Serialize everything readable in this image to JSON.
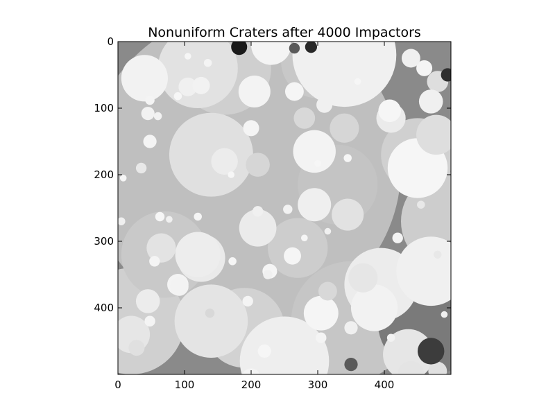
{
  "chart_data": {
    "type": "heatmap",
    "title": "Nonuniform Craters after 4000 Impactors",
    "xlabel": "",
    "ylabel": "",
    "xlim": [
      0,
      500
    ],
    "ylim": [
      500,
      0
    ],
    "x_ticks": [
      0,
      100,
      200,
      300,
      400
    ],
    "y_ticks": [
      0,
      100,
      200,
      300,
      400
    ],
    "x_tick_labels": [
      "0",
      "100",
      "200",
      "300",
      "400"
    ],
    "y_tick_labels": [
      "0",
      "100",
      "200",
      "300",
      "400"
    ],
    "colormap": "gray",
    "background_shade": "#8a8a8a",
    "frame_color": "#000000",
    "craters": [
      {
        "x": 190,
        "y": 190,
        "r": 235,
        "shade": "#bfbfbf"
      },
      {
        "x": 350,
        "y": 420,
        "r": 90,
        "shade": "#c6c6c6"
      },
      {
        "x": 330,
        "y": 215,
        "r": 60,
        "shade": "#c4c4c4"
      },
      {
        "x": 500,
        "y": 270,
        "r": 75,
        "shade": "#cdcdcd"
      },
      {
        "x": 450,
        "y": 170,
        "r": 55,
        "shade": "#d0d0d0"
      },
      {
        "x": 20,
        "y": 420,
        "r": 80,
        "shade": "#d0d0d0"
      },
      {
        "x": 190,
        "y": 430,
        "r": 60,
        "shade": "#d2d2d2"
      },
      {
        "x": 300,
        "y": 30,
        "r": 55,
        "shade": "#c8c8c8"
      },
      {
        "x": 160,
        "y": 40,
        "r": 70,
        "shade": "#cfcfcf"
      },
      {
        "x": 70,
        "y": 320,
        "r": 65,
        "shade": "#c9c9c9"
      },
      {
        "x": 470,
        "y": 420,
        "r": 80,
        "shade": "#7a7a7a"
      },
      {
        "x": 270,
        "y": 310,
        "r": 45,
        "shade": "#cdcdcd"
      },
      {
        "x": 120,
        "y": 40,
        "r": 60,
        "shade": "#e2e2e2"
      },
      {
        "x": 140,
        "y": 170,
        "r": 63,
        "shade": "#e0e0e0"
      },
      {
        "x": 40,
        "y": 55,
        "r": 35,
        "shade": "#f2f2f2"
      },
      {
        "x": 340,
        "y": 20,
        "r": 78,
        "shade": "#f0f0f0"
      },
      {
        "x": 230,
        "y": 5,
        "r": 30,
        "shade": "#f4f4f4"
      },
      {
        "x": 450,
        "y": 190,
        "r": 45,
        "shade": "#f6f6f6"
      },
      {
        "x": 395,
        "y": 365,
        "r": 55,
        "shade": "#ececec"
      },
      {
        "x": 385,
        "y": 400,
        "r": 35,
        "shade": "#f2f2f2"
      },
      {
        "x": 470,
        "y": 345,
        "r": 52,
        "shade": "#f0f0f0"
      },
      {
        "x": 140,
        "y": 420,
        "r": 55,
        "shade": "#e4e4e4"
      },
      {
        "x": 250,
        "y": 480,
        "r": 67,
        "shade": "#eeeeee"
      },
      {
        "x": 125,
        "y": 325,
        "r": 36,
        "shade": "#eaeaea"
      },
      {
        "x": 210,
        "y": 280,
        "r": 28,
        "shade": "#ebebeb"
      },
      {
        "x": 295,
        "y": 245,
        "r": 25,
        "shade": "#efefef"
      },
      {
        "x": 295,
        "y": 165,
        "r": 32,
        "shade": "#f3f3f3"
      },
      {
        "x": 20,
        "y": 440,
        "r": 28,
        "shade": "#e6e6e6"
      },
      {
        "x": 305,
        "y": 408,
        "r": 26,
        "shade": "#f5f5f5"
      },
      {
        "x": 436,
        "y": 470,
        "r": 38,
        "shade": "#e6e6e6"
      },
      {
        "x": 205,
        "y": 75,
        "r": 24,
        "shade": "#f3f3f3"
      },
      {
        "x": 410,
        "y": 115,
        "r": 22,
        "shade": "#ebebeb"
      },
      {
        "x": 478,
        "y": 140,
        "r": 30,
        "shade": "#dedede"
      },
      {
        "x": 345,
        "y": 260,
        "r": 24,
        "shade": "#e2e2e2"
      },
      {
        "x": 65,
        "y": 310,
        "r": 22,
        "shade": "#e3e3e3"
      },
      {
        "x": 90,
        "y": 365,
        "r": 16,
        "shade": "#f4f4f4"
      },
      {
        "x": 45,
        "y": 390,
        "r": 18,
        "shade": "#ececec"
      },
      {
        "x": 315,
        "y": 375,
        "r": 14,
        "shade": "#d8d8d8"
      },
      {
        "x": 340,
        "y": 130,
        "r": 22,
        "shade": "#d6d6d6"
      },
      {
        "x": 280,
        "y": 115,
        "r": 16,
        "shade": "#d8d8d8"
      },
      {
        "x": 265,
        "y": 75,
        "r": 14,
        "shade": "#f5f5f5"
      },
      {
        "x": 210,
        "y": 185,
        "r": 18,
        "shade": "#d6d6d6"
      },
      {
        "x": 160,
        "y": 180,
        "r": 20,
        "shade": "#ececec"
      },
      {
        "x": 200,
        "y": 130,
        "r": 12,
        "shade": "#f4f4f4"
      },
      {
        "x": 105,
        "y": 68,
        "r": 14,
        "shade": "#f0f0f0"
      },
      {
        "x": 125,
        "y": 66,
        "r": 13,
        "shade": "#f2f2f2"
      },
      {
        "x": 228,
        "y": 345,
        "r": 11,
        "shade": "#f5f5f5"
      },
      {
        "x": 262,
        "y": 322,
        "r": 13,
        "shade": "#f5f5f5"
      },
      {
        "x": 310,
        "y": 95,
        "r": 12,
        "shade": "#f0f0f0"
      },
      {
        "x": 408,
        "y": 104,
        "r": 17,
        "shade": "#f6f6f6"
      },
      {
        "x": 480,
        "y": 60,
        "r": 16,
        "shade": "#dedede"
      },
      {
        "x": 470,
        "y": 90,
        "r": 18,
        "shade": "#f0f0f0"
      },
      {
        "x": 460,
        "y": 40,
        "r": 12,
        "shade": "#f4f4f4"
      },
      {
        "x": 440,
        "y": 25,
        "r": 14,
        "shade": "#f0f0f0"
      },
      {
        "x": 480,
        "y": 495,
        "r": 14,
        "shade": "#e0e0e0"
      },
      {
        "x": 440,
        "y": 500,
        "r": 20,
        "shade": "#e4e4e4"
      },
      {
        "x": 120,
        "y": 320,
        "r": 34,
        "shade": "#ededed"
      },
      {
        "x": 368,
        "y": 355,
        "r": 22,
        "shade": "#e6e6e6"
      },
      {
        "x": 92,
        "y": 368,
        "r": 14,
        "shade": "#f3f3f3"
      },
      {
        "x": 28,
        "y": 460,
        "r": 12,
        "shade": "#e0e0e0"
      },
      {
        "x": 200,
        "y": 505,
        "r": 14,
        "shade": "#f4f4f4"
      },
      {
        "x": 350,
        "y": 430,
        "r": 10,
        "shade": "#f0f0f0"
      },
      {
        "x": 530,
        "y": 230,
        "r": 20,
        "shade": "#e0e0e0"
      },
      {
        "x": 305,
        "y": 445,
        "r": 8,
        "shade": "#f4f4f4"
      },
      {
        "x": 48,
        "y": 150,
        "r": 10,
        "shade": "#f4f4f4"
      },
      {
        "x": 35,
        "y": 190,
        "r": 8,
        "shade": "#e8e8e8"
      },
      {
        "x": 8,
        "y": 205,
        "r": 5,
        "shade": "#f6f6f6"
      },
      {
        "x": 5,
        "y": 270,
        "r": 6,
        "shade": "#f0f0f0"
      },
      {
        "x": 45,
        "y": 108,
        "r": 10,
        "shade": "#f2f2f2"
      },
      {
        "x": 60,
        "y": 112,
        "r": 6,
        "shade": "#f2f2f2"
      },
      {
        "x": 48,
        "y": 88,
        "r": 7,
        "shade": "#f4f4f4"
      },
      {
        "x": 90,
        "y": 82,
        "r": 6,
        "shade": "#f6f6f6"
      },
      {
        "x": 135,
        "y": 32,
        "r": 6,
        "shade": "#f4f4f4"
      },
      {
        "x": 105,
        "y": 22,
        "r": 5,
        "shade": "#f6f6f6"
      },
      {
        "x": 138,
        "y": 408,
        "r": 7,
        "shade": "#d8d8d8"
      },
      {
        "x": 48,
        "y": 420,
        "r": 8,
        "shade": "#f4f4f4"
      },
      {
        "x": 63,
        "y": 263,
        "r": 7,
        "shade": "#f6f6f6"
      },
      {
        "x": 77,
        "y": 267,
        "r": 5,
        "shade": "#f0f0f0"
      },
      {
        "x": 55,
        "y": 330,
        "r": 8,
        "shade": "#f4f4f4"
      },
      {
        "x": 120,
        "y": 263,
        "r": 6,
        "shade": "#f5f5f5"
      },
      {
        "x": 170,
        "y": 200,
        "r": 5,
        "shade": "#f6f6f6"
      },
      {
        "x": 210,
        "y": 255,
        "r": 8,
        "shade": "#f0f0f0"
      },
      {
        "x": 255,
        "y": 252,
        "r": 7,
        "shade": "#f2f2f2"
      },
      {
        "x": 315,
        "y": 285,
        "r": 5,
        "shade": "#f0f0f0"
      },
      {
        "x": 345,
        "y": 175,
        "r": 6,
        "shade": "#f6f6f6"
      },
      {
        "x": 300,
        "y": 183,
        "r": 5,
        "shade": "#f6f6f6"
      },
      {
        "x": 360,
        "y": 60,
        "r": 5,
        "shade": "#f6f6f6"
      },
      {
        "x": 410,
        "y": 445,
        "r": 6,
        "shade": "#f2f2f2"
      },
      {
        "x": 455,
        "y": 245,
        "r": 6,
        "shade": "#e8e8e8"
      },
      {
        "x": 420,
        "y": 295,
        "r": 8,
        "shade": "#f3f3f3"
      },
      {
        "x": 480,
        "y": 320,
        "r": 6,
        "shade": "#e8e8e8"
      },
      {
        "x": 490,
        "y": 410,
        "r": 5,
        "shade": "#f0f0f0"
      },
      {
        "x": 480,
        "y": 475,
        "r": 6,
        "shade": "#f6f6f6"
      },
      {
        "x": 220,
        "y": 465,
        "r": 10,
        "shade": "#f6f6f6"
      },
      {
        "x": 195,
        "y": 390,
        "r": 8,
        "shade": "#f4f4f4"
      },
      {
        "x": 172,
        "y": 330,
        "r": 6,
        "shade": "#f6f6f6"
      },
      {
        "x": 225,
        "y": 350,
        "r": 7,
        "shade": "#f0f0f0"
      },
      {
        "x": 280,
        "y": 295,
        "r": 5,
        "shade": "#f6f6f6"
      }
    ],
    "dark_holes": [
      {
        "x": 182,
        "y": 8,
        "r": 12,
        "shade": "#1a1a1a"
      },
      {
        "x": 290,
        "y": 8,
        "r": 9,
        "shade": "#282828"
      },
      {
        "x": 265,
        "y": 10,
        "r": 8,
        "shade": "#5a5a5a"
      },
      {
        "x": 350,
        "y": 485,
        "r": 10,
        "shade": "#5a5a5a"
      },
      {
        "x": 495,
        "y": 50,
        "r": 10,
        "shade": "#2e2e2e"
      },
      {
        "x": 470,
        "y": 465,
        "r": 20,
        "shade": "#3c3c3c"
      }
    ]
  }
}
